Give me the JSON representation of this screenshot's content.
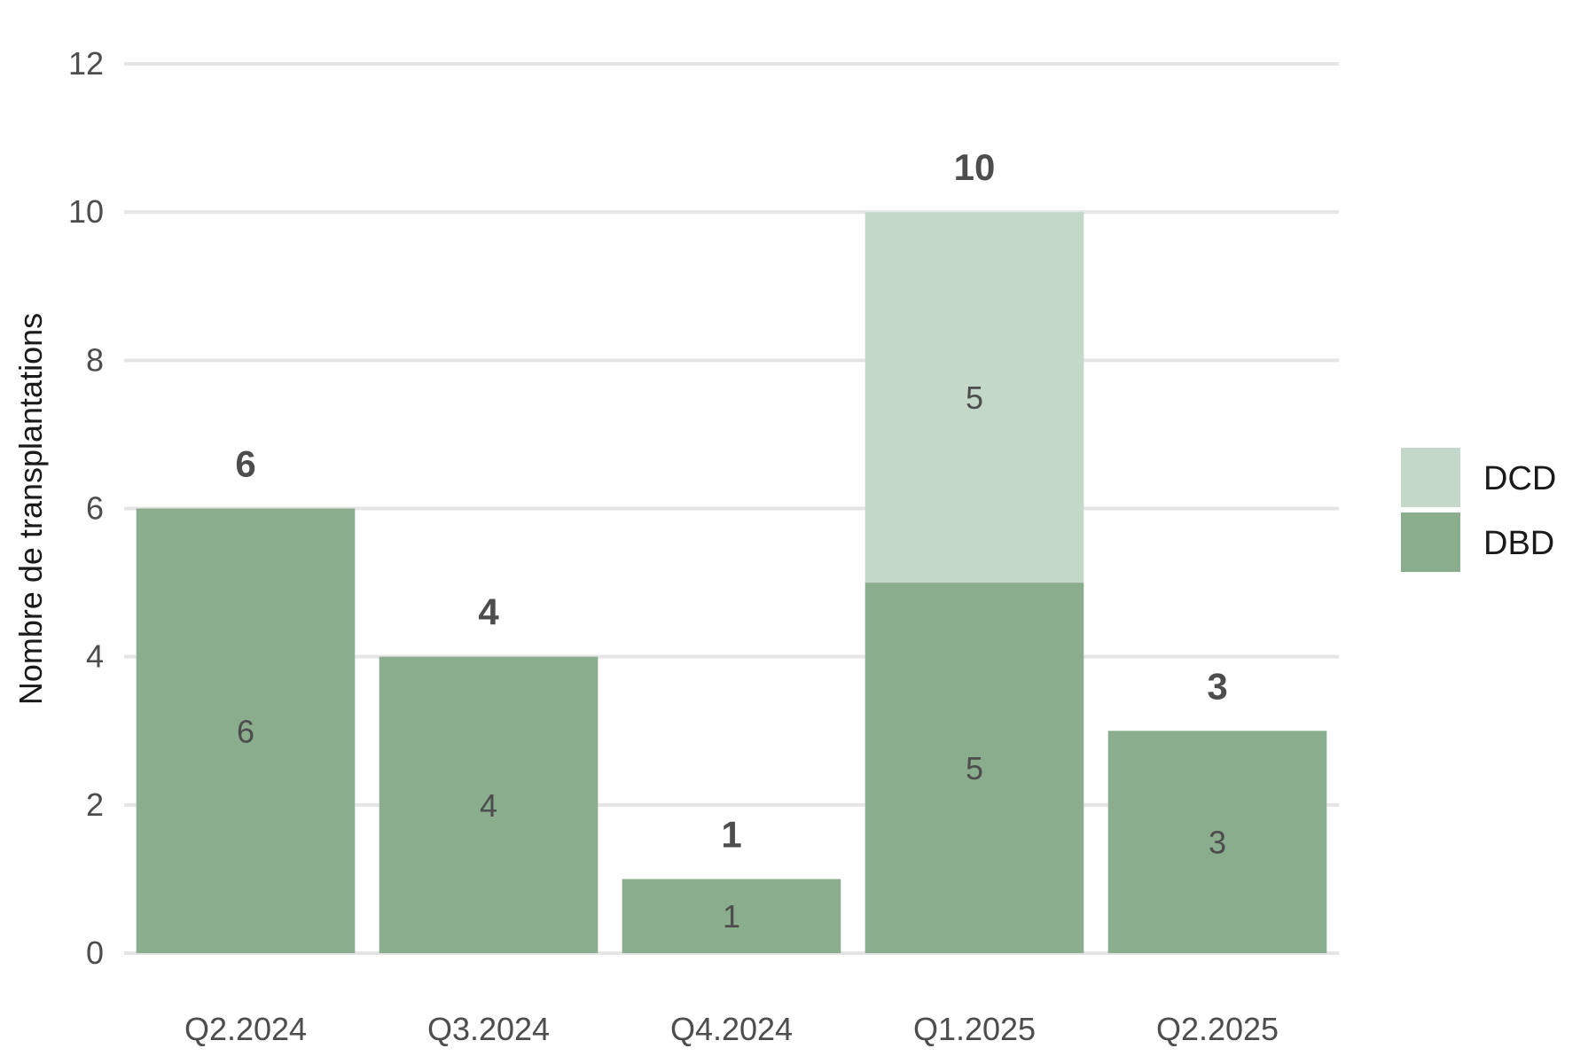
{
  "chart_data": {
    "type": "bar",
    "stacked": true,
    "categories": [
      "Q2.2024",
      "Q3.2024",
      "Q4.2024",
      "Q1.2025",
      "Q2.2025"
    ],
    "series": [
      {
        "name": "DBD",
        "values": [
          6,
          4,
          1,
          5,
          3
        ],
        "color": "#8aad8e"
      },
      {
        "name": "DCD",
        "values": [
          0,
          0,
          0,
          5,
          0
        ],
        "color": "#c4d8c9"
      }
    ],
    "totals": [
      6,
      4,
      1,
      10,
      3
    ],
    "ylabel": "Nombre de transplantations",
    "ylim": [
      0,
      12
    ],
    "yticks": [
      0,
      2,
      4,
      6,
      8,
      10,
      12
    ],
    "grid": true,
    "legend_position": "right",
    "legend_order": [
      "DCD",
      "DBD"
    ]
  }
}
